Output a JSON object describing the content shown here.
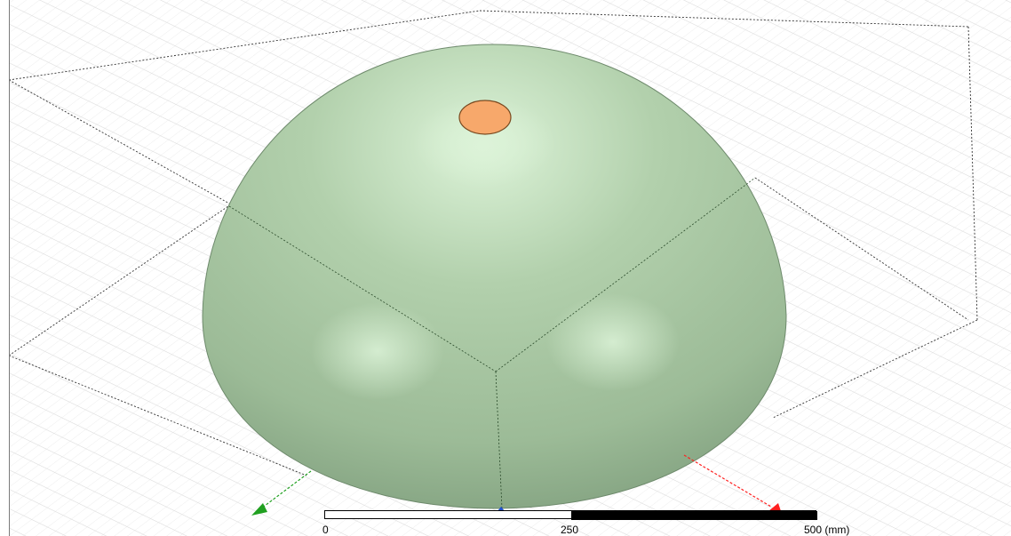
{
  "viewport": {
    "grid_color": "#c8c8c8",
    "model_color": "#a7c6a2",
    "model_highlight_color": "#dcf3d8",
    "model_shadow_color": "#7f9e7d",
    "port_color": "#f7a86b",
    "x_axis_color": "#ff2020",
    "y_axis_color": "#20a020",
    "z_axis_color": "#2050d0"
  },
  "scale_bar": {
    "labels": [
      "0",
      "250",
      "500 (mm)"
    ],
    "stops": [
      0,
      0.5,
      1
    ]
  }
}
